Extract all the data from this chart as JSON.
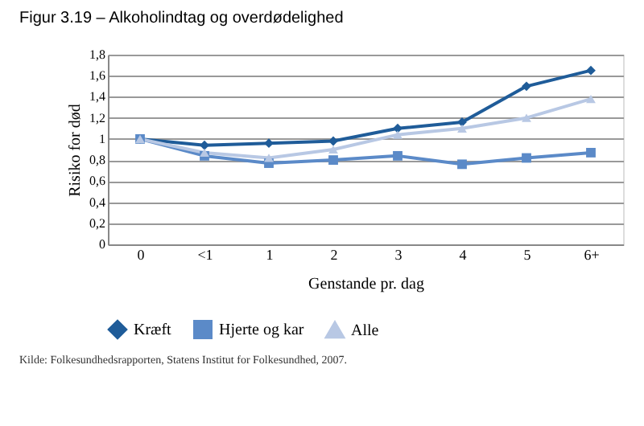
{
  "chart_data": {
    "type": "line",
    "title": "Figur 3.19 – Alkoholindtag og overdødelighed",
    "xlabel": "Genstande pr. dag",
    "ylabel": "Risiko for død",
    "categories": [
      "0",
      "<1",
      "1",
      "2",
      "3",
      "4",
      "5",
      "6+"
    ],
    "series": [
      {
        "name": "Kræft",
        "color": "#1f5c99",
        "marker": "diamond",
        "values": [
          1.0,
          0.94,
          0.96,
          0.98,
          1.1,
          1.16,
          1.5,
          1.65
        ]
      },
      {
        "name": "Hjerte og kar",
        "color": "#5b8ac8",
        "marker": "square",
        "values": [
          1.0,
          0.84,
          0.77,
          0.8,
          0.84,
          0.76,
          0.82,
          0.87
        ]
      },
      {
        "name": "Alle",
        "color": "#b8c8e4",
        "marker": "triangle",
        "values": [
          1.0,
          0.87,
          0.82,
          0.9,
          1.04,
          1.1,
          1.2,
          1.38
        ]
      }
    ],
    "ylim": [
      0,
      1.8
    ],
    "yticks": [
      0,
      {
        "value": 0.2,
        "label": "0,2"
      },
      {
        "value": 0.4,
        "label": "0,4"
      },
      {
        "value": 0.6,
        "label": "0,6"
      },
      {
        "value": 0.8,
        "label": "0,8"
      },
      1,
      {
        "value": 1.2,
        "label": "1,2"
      },
      {
        "value": 1.4,
        "label": "1,4"
      },
      {
        "value": 1.6,
        "label": "1,6"
      },
      {
        "value": 1.8,
        "label": "1,8"
      }
    ],
    "grid": "y",
    "legend": "bottom",
    "line_style": "solid",
    "annotations": [
      "Kilde: Folkesundhedsrapporten, Statens Institut for Folkesundhed, 2007."
    ]
  }
}
